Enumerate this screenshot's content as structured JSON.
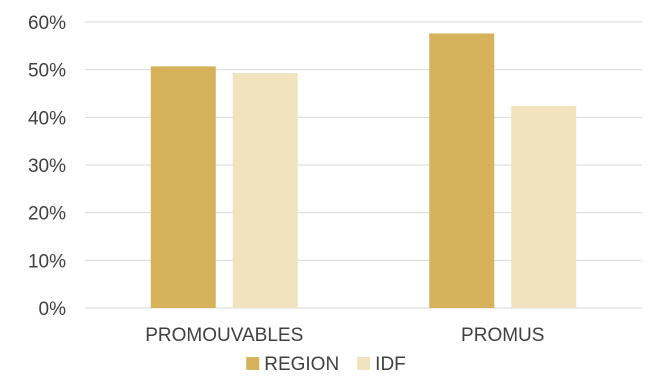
{
  "chart_data": {
    "type": "bar",
    "title": "",
    "xlabel": "",
    "ylabel": "",
    "categories": [
      "PROMOUVABLES",
      "PROMUS"
    ],
    "series": [
      {
        "name": "REGION",
        "values": [
          0.507,
          0.576
        ],
        "color": "#d6b35a"
      },
      {
        "name": "IDF",
        "values": [
          0.493,
          0.424
        ],
        "color": "#f0e3bd"
      }
    ],
    "ylim": [
      0,
      0.6
    ],
    "yticks": [
      {
        "value": 0,
        "label": "0%"
      },
      {
        "value": 0.1,
        "label": "10%"
      },
      {
        "value": 0.2,
        "label": "20%"
      },
      {
        "value": 0.3,
        "label": "30%"
      },
      {
        "value": 0.4,
        "label": "40%"
      },
      {
        "value": 0.5,
        "label": "50%"
      },
      {
        "value": 0.6,
        "label": "60%"
      }
    ],
    "grid": true,
    "legend_position": "bottom",
    "gridline_color": "#d9d9d9"
  }
}
